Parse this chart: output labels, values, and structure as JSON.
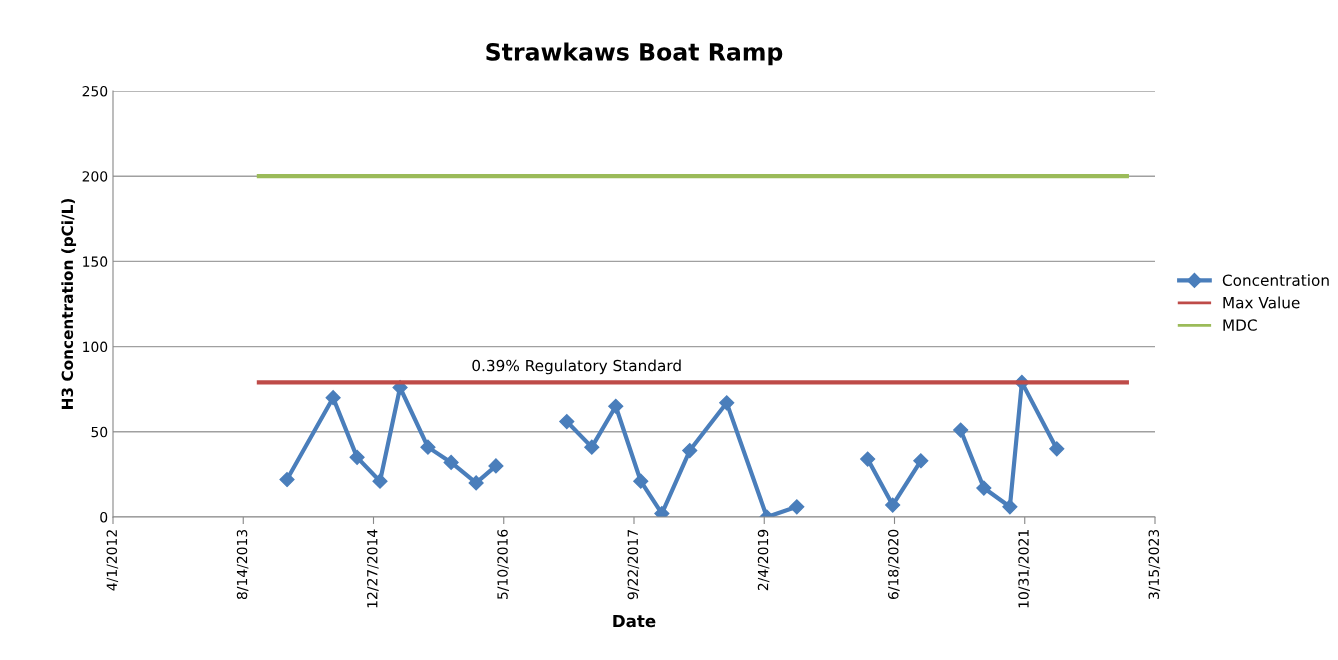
{
  "chart_data": {
    "type": "line",
    "title": "Strawkaws Boat Ramp",
    "xlabel": "Date",
    "ylabel": "H3 Concentration (pCi/L)",
    "series": [
      {
        "name": "Concentration",
        "color": "#4a7ebb",
        "marker": "diamond",
        "x": [
          "2014-01-29",
          "2014-07-25",
          "2014-10-25",
          "2015-01-21",
          "2015-04-08",
          "2015-07-24",
          "2015-10-21",
          "2016-01-25",
          "2016-04-10",
          "2016-08-20",
          "2017-01-07",
          "2017-04-13",
          "2017-07-14",
          "2017-10-18",
          "2018-01-07",
          "2018-04-24",
          "2018-09-13",
          "2019-02-14",
          "2019-06-09",
          "2019-11-01",
          "2020-03-07",
          "2020-06-11",
          "2020-09-27",
          "2020-12-01",
          "2021-02-27",
          "2021-05-27",
          "2021-09-04",
          "2021-10-20",
          "2022-03-03"
        ],
        "values": [
          22,
          70,
          35,
          21,
          76,
          41,
          32,
          20,
          30,
          null,
          56,
          41,
          65,
          21,
          2,
          39,
          67,
          0,
          6,
          null,
          34,
          7,
          33,
          null,
          51,
          17,
          6,
          79,
          40
        ]
      },
      {
        "name": "Max Value",
        "color": "#be4b48",
        "marker": "none",
        "x": [
          "2013-10-13",
          "2022-11-27"
        ],
        "values": [
          79,
          79
        ]
      },
      {
        "name": "MDC",
        "color": "#9bbb59",
        "marker": "none",
        "x": [
          "2013-10-13",
          "2022-11-27"
        ],
        "values": [
          200,
          200
        ]
      }
    ],
    "annotations": [
      "0.39% Regulatory Standard"
    ],
    "xlim": [
      "2012-04-01",
      "2023-03-15"
    ],
    "xticks": [
      {
        "value": "2012-04-01",
        "label": "4/1/2012"
      },
      {
        "value": "2013-08-14",
        "label": "8/14/2013"
      },
      {
        "value": "2014-12-27",
        "label": "12/27/2014"
      },
      {
        "value": "2016-05-10",
        "label": "5/10/2016"
      },
      {
        "value": "2017-09-22",
        "label": "9/22/2017"
      },
      {
        "value": "2019-02-04",
        "label": "2/4/2019"
      },
      {
        "value": "2020-06-18",
        "label": "6/18/2020"
      },
      {
        "value": "2021-10-31",
        "label": "10/31/2021"
      },
      {
        "value": "2023-03-15",
        "label": "3/15/2023"
      }
    ],
    "ylim": [
      0,
      250
    ],
    "yticks": [
      0,
      50,
      100,
      150,
      200,
      250
    ],
    "grid": "y",
    "legend": "right"
  }
}
